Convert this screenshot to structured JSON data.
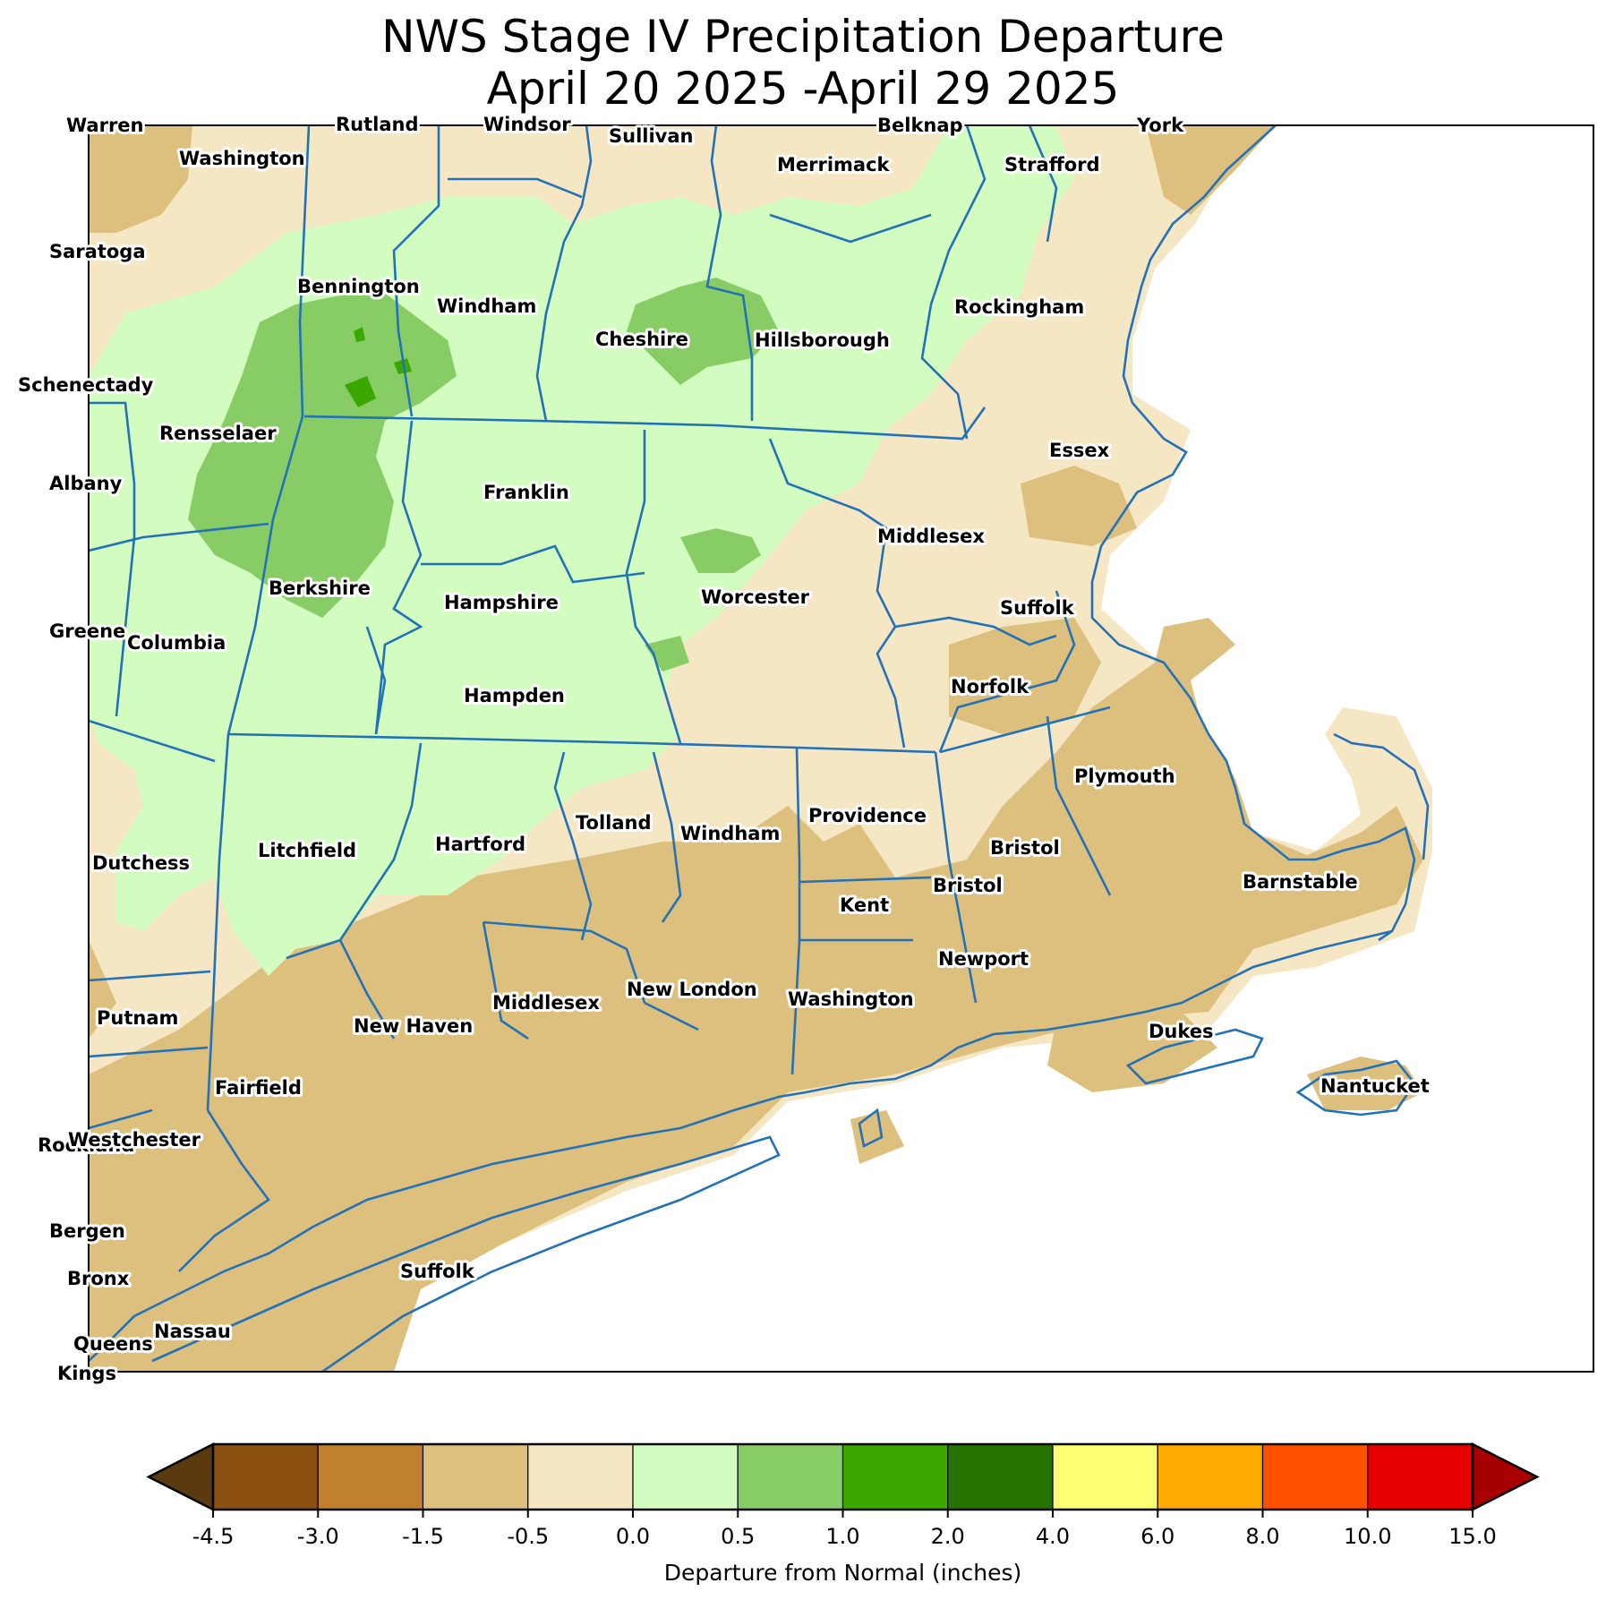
{
  "title": {
    "line1": "NWS Stage IV Precipitation Departure",
    "line2": "April 20 2025 -April 29 2025"
  },
  "colors": {
    "much_drier": "#deC07e",
    "drier": "#f5e6c4",
    "wetter": "#d2fcc0",
    "much_wetter": "#88cc66",
    "wettest": "#3aa800",
    "boundary": "#2371b6",
    "state_line": "#1f4f8a"
  },
  "county_labels": [
    {
      "id": "warren",
      "text": "Warren"
    },
    {
      "id": "rutland",
      "text": "Rutland"
    },
    {
      "id": "windsor",
      "text": "Windsor"
    },
    {
      "id": "sullivan",
      "text": "Sullivan"
    },
    {
      "id": "belknap",
      "text": "Belknap"
    },
    {
      "id": "york",
      "text": "York"
    },
    {
      "id": "washington-ny",
      "text": "Washington"
    },
    {
      "id": "merrimack",
      "text": "Merrimack"
    },
    {
      "id": "strafford",
      "text": "Strafford"
    },
    {
      "id": "saratoga",
      "text": "Saratoga"
    },
    {
      "id": "bennington",
      "text": "Bennington"
    },
    {
      "id": "windham-vt",
      "text": "Windham"
    },
    {
      "id": "rockingham",
      "text": "Rockingham"
    },
    {
      "id": "cheshire",
      "text": "Cheshire"
    },
    {
      "id": "hillsborough",
      "text": "Hillsborough"
    },
    {
      "id": "schenectady",
      "text": "Schenectady"
    },
    {
      "id": "rensselaer",
      "text": "Rensselaer"
    },
    {
      "id": "essex",
      "text": "Essex"
    },
    {
      "id": "albany",
      "text": "Albany"
    },
    {
      "id": "franklin",
      "text": "Franklin"
    },
    {
      "id": "middlesex-ma",
      "text": "Middlesex"
    },
    {
      "id": "berkshire",
      "text": "Berkshire"
    },
    {
      "id": "worcester",
      "text": "Worcester"
    },
    {
      "id": "hampshire",
      "text": "Hampshire"
    },
    {
      "id": "suffolk-ma",
      "text": "Suffolk"
    },
    {
      "id": "greene",
      "text": "Greene"
    },
    {
      "id": "columbia",
      "text": "Columbia"
    },
    {
      "id": "norfolk",
      "text": "Norfolk"
    },
    {
      "id": "hampden",
      "text": "Hampden"
    },
    {
      "id": "plymouth",
      "text": "Plymouth"
    },
    {
      "id": "providence",
      "text": "Providence"
    },
    {
      "id": "tolland",
      "text": "Tolland"
    },
    {
      "id": "windham-ct",
      "text": "Windham"
    },
    {
      "id": "bristol-ma",
      "text": "Bristol"
    },
    {
      "id": "dutchess",
      "text": "Dutchess"
    },
    {
      "id": "litchfield",
      "text": "Litchfield"
    },
    {
      "id": "hartford",
      "text": "Hartford"
    },
    {
      "id": "barnstable",
      "text": "Barnstable"
    },
    {
      "id": "bristol-ri",
      "text": "Bristol"
    },
    {
      "id": "kent",
      "text": "Kent"
    },
    {
      "id": "newport",
      "text": "Newport"
    },
    {
      "id": "new-london",
      "text": "New London"
    },
    {
      "id": "washington-ri",
      "text": "Washington"
    },
    {
      "id": "middlesex-ct",
      "text": "Middlesex"
    },
    {
      "id": "putnam",
      "text": "Putnam"
    },
    {
      "id": "new-haven",
      "text": "New Haven"
    },
    {
      "id": "dukes",
      "text": "Dukes"
    },
    {
      "id": "fairfield",
      "text": "Fairfield"
    },
    {
      "id": "nantucket",
      "text": "Nantucket"
    },
    {
      "id": "rockland",
      "text": "Rockland"
    },
    {
      "id": "westchester",
      "text": "Westchester"
    },
    {
      "id": "bergen",
      "text": "Bergen"
    },
    {
      "id": "suffolk-ny",
      "text": "Suffolk"
    },
    {
      "id": "bronx",
      "text": "Bronx"
    },
    {
      "id": "nassau",
      "text": "Nassau"
    },
    {
      "id": "queens",
      "text": "Queens"
    },
    {
      "id": "kings",
      "text": "Kings"
    }
  ],
  "colorbar": {
    "title": "Departure from Normal (inches)",
    "ticks": [
      "-4.5",
      "-3.0",
      "-1.5",
      "-0.5",
      "0.0",
      "0.5",
      "1.0",
      "2.0",
      "4.0",
      "6.0",
      "8.0",
      "10.0",
      "15.0"
    ],
    "colors": [
      "#8b4f10",
      "#c08030",
      "#deC07e",
      "#f5e6c4",
      "#d2fcc0",
      "#88cc66",
      "#3aa800",
      "#267300",
      "#ffff73",
      "#ffaa00",
      "#ff5000",
      "#e60000"
    ],
    "under_color": "#5c3a10",
    "over_color": "#a80000"
  }
}
